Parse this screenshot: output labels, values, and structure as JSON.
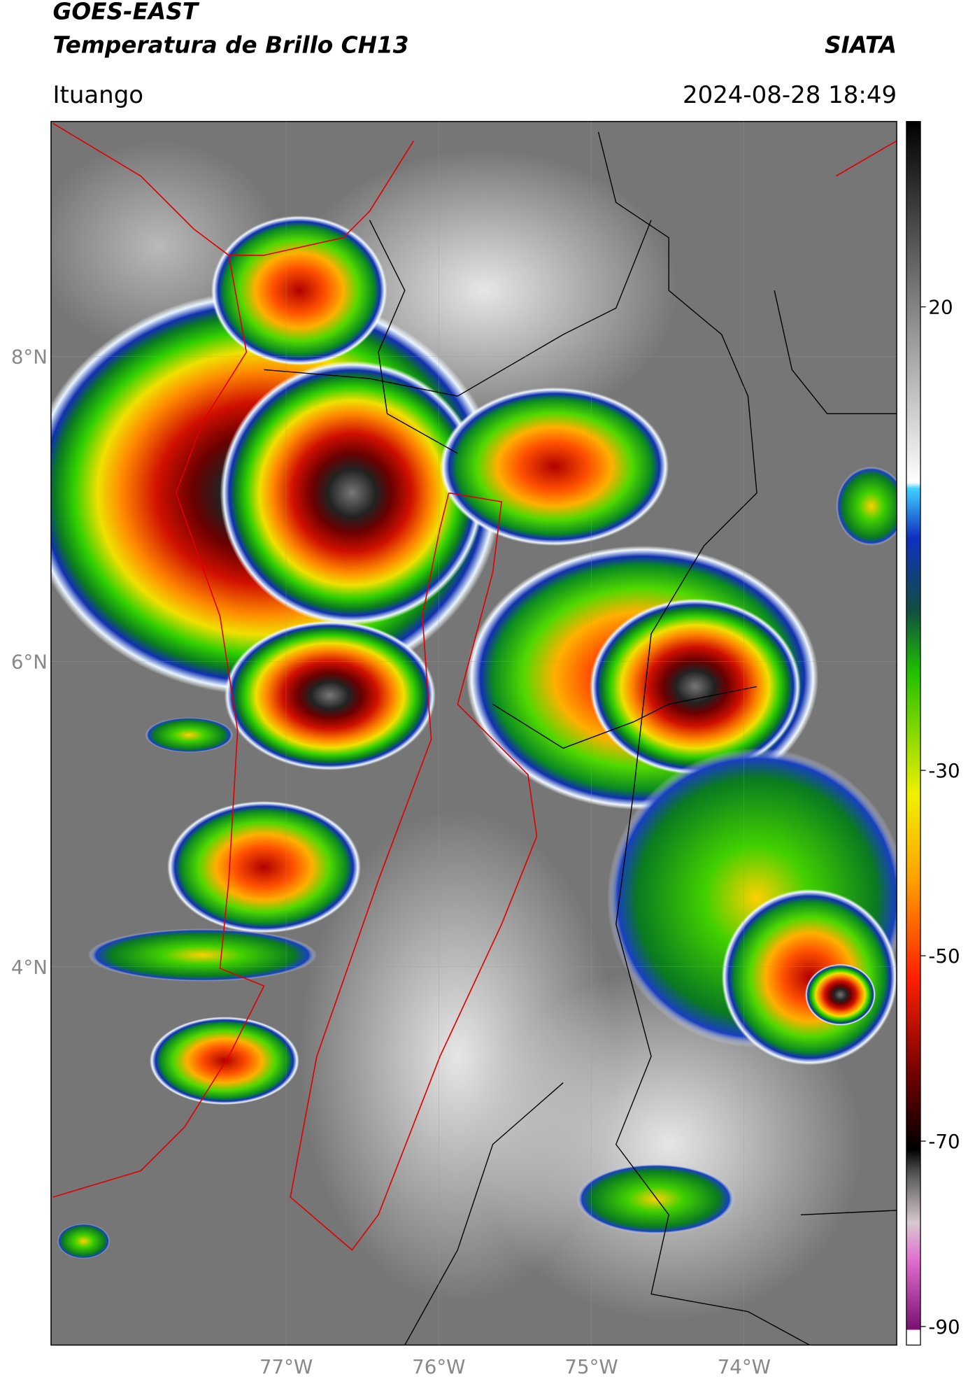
{
  "header": {
    "title": "GOES-EAST",
    "subtitle": "Temperatura de Brillo CH13",
    "brand": "SIATA",
    "region": "Ituango",
    "datetime": "2024-08-28 18:49"
  },
  "map": {
    "xlim": [
      -78.54,
      -73.0
    ],
    "ylim": [
      1.52,
      9.54
    ],
    "xticks": [
      {
        "value": -77,
        "label": "77°W"
      },
      {
        "value": -76,
        "label": "76°W"
      },
      {
        "value": -75,
        "label": "75°W"
      },
      {
        "value": -74,
        "label": "74°W"
      }
    ],
    "yticks": [
      {
        "value": 8,
        "label": "8°N"
      },
      {
        "value": 6,
        "label": "6°N"
      },
      {
        "value": 4,
        "label": "4°N"
      }
    ]
  },
  "colorbar": {
    "clim": [
      -92,
      40
    ],
    "ticks": [
      20,
      -30,
      -50,
      -70,
      -90
    ]
  }
}
